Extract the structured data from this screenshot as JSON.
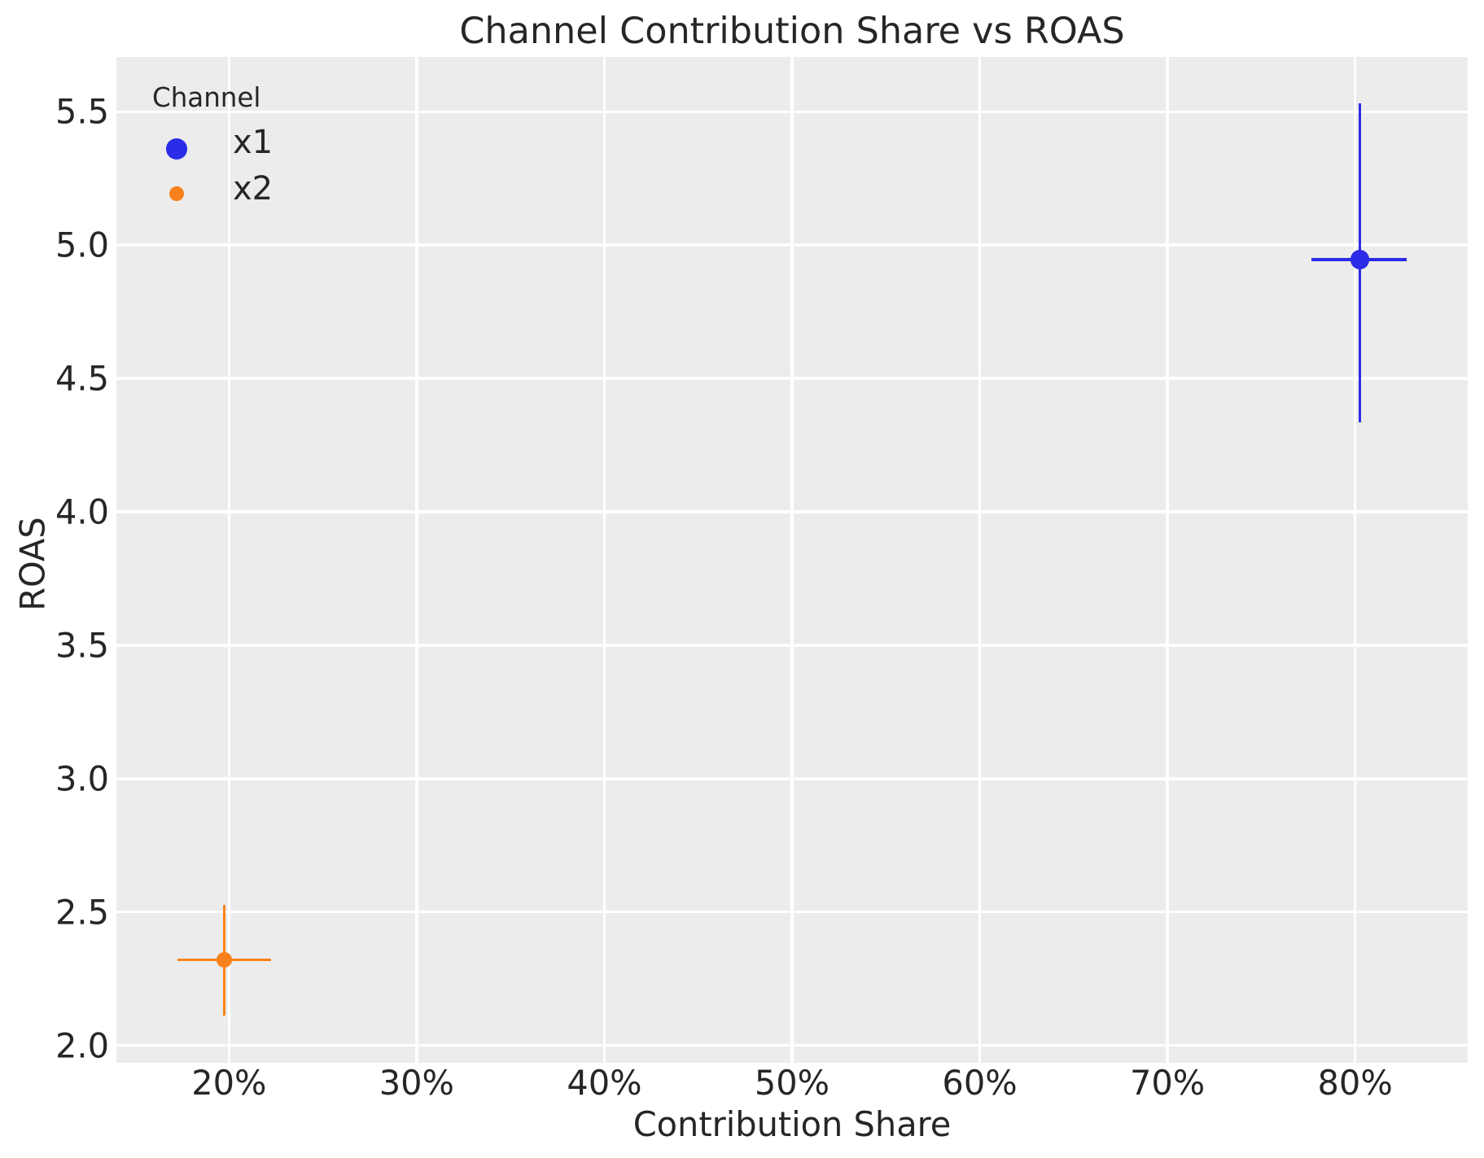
{
  "chart_data": {
    "type": "scatter",
    "title": "Channel Contribution Share vs ROAS",
    "xlabel": "Contribution Share",
    "ylabel": "ROAS",
    "xlim": [
      0.14,
      0.86
    ],
    "ylim": [
      1.934,
      5.705
    ],
    "grid": true,
    "x_ticks": [
      {
        "value": 0.2,
        "label": "20%"
      },
      {
        "value": 0.3,
        "label": "30%"
      },
      {
        "value": 0.4,
        "label": "40%"
      },
      {
        "value": 0.5,
        "label": "50%"
      },
      {
        "value": 0.6,
        "label": "60%"
      },
      {
        "value": 0.7,
        "label": "70%"
      },
      {
        "value": 0.8,
        "label": "80%"
      }
    ],
    "y_ticks": [
      {
        "value": 2.0,
        "label": "2.0"
      },
      {
        "value": 2.5,
        "label": "2.5"
      },
      {
        "value": 3.0,
        "label": "3.0"
      },
      {
        "value": 3.5,
        "label": "3.5"
      },
      {
        "value": 4.0,
        "label": "4.0"
      },
      {
        "value": 4.5,
        "label": "4.5"
      },
      {
        "value": 5.0,
        "label": "5.0"
      },
      {
        "value": 5.5,
        "label": "5.5"
      }
    ],
    "series": [
      {
        "name": "x1",
        "color": "#2b2be8",
        "share": 0.8025,
        "roas": 4.945,
        "share_ci": [
          0.7768,
          0.8275
        ],
        "roas_ci": [
          4.336,
          5.531
        ],
        "marker_radius": 11.8,
        "legend_marker_radius": 12.85
      },
      {
        "name": "x2",
        "color": "#f8811b",
        "share": 0.1974,
        "roas": 2.321,
        "share_ci": [
          0.1725,
          0.2226
        ],
        "roas_ci": [
          2.112,
          2.526
        ],
        "marker_radius": 9.3,
        "legend_marker_radius": 8.9
      }
    ],
    "legend": {
      "title": "Channel",
      "position": "upper left",
      "entries": [
        "x1",
        "x2"
      ]
    }
  },
  "style": {
    "plot_bg": "#ececec",
    "grid_color": "#ffffff",
    "text_color": "#262626"
  }
}
